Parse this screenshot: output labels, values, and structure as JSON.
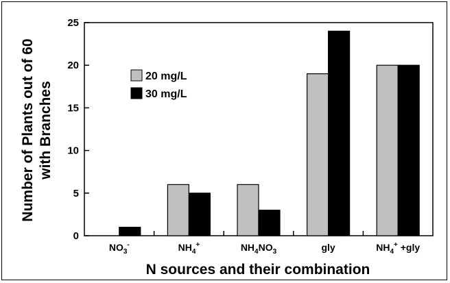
{
  "chart_data": {
    "type": "bar",
    "title": "",
    "xlabel": "N sources and their combination",
    "ylabel_lines": [
      "Number of Plants out of 60",
      "with Branches"
    ],
    "ylim": [
      0,
      25
    ],
    "yticks": [
      0,
      5,
      10,
      15,
      20,
      25
    ],
    "categories": [
      {
        "base": "NO",
        "sub": "3",
        "sup": "-",
        "tail": ""
      },
      {
        "base": "NH",
        "sub": "",
        "sup": "4",
        "tail": "+"
      },
      {
        "base": "NH",
        "sub": "4",
        "sup": "",
        "tail": "NO₃"
      },
      {
        "base": "gly",
        "sub": "",
        "sup": "",
        "tail": ""
      },
      {
        "base": "NH",
        "sub": "",
        "sup": "4",
        "tail": "+ +gly"
      }
    ],
    "category_labels": [
      "NO3-",
      "NH4+",
      "NH4NO3",
      "gly",
      "NH4+ +gly"
    ],
    "series": [
      {
        "name": "20 mg/L",
        "color": "#c0c0c0",
        "values": [
          0,
          6,
          6,
          19,
          20
        ]
      },
      {
        "name": "30 mg/L",
        "color": "#000000",
        "values": [
          1,
          5,
          3,
          24,
          20
        ]
      }
    ],
    "legend_position": "upper-left",
    "grid": false
  }
}
